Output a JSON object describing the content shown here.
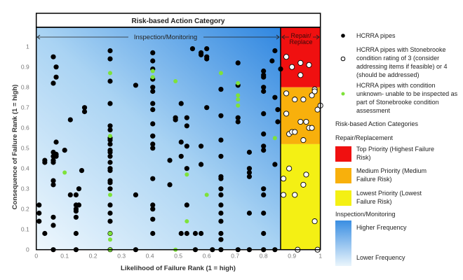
{
  "chart_data": {
    "type": "scatter",
    "title": "Risk-based Action Category",
    "xlabel": "Likelihood of Failure Rank (1 = high)",
    "ylabel": "Consequence of Failure Rank (1 = high)",
    "xlim": [
      0,
      1
    ],
    "ylim": [
      0,
      1.1
    ],
    "xticks": [
      "0",
      "0.1",
      "0.2",
      "0.3",
      "0.4",
      "0.5",
      "0.6",
      "0.7",
      "0.8",
      "0.9",
      "1"
    ],
    "yticks": [
      "0",
      "0.1",
      "0.2",
      "0.3",
      "0.4",
      "0.5",
      "0.6",
      "0.7",
      "0.8",
      "0.9",
      "1"
    ],
    "grid": false,
    "legend_position": "right",
    "zones": {
      "inspection_label": "Inspection/Monitoring",
      "repair_label_line1": "Repair/",
      "repair_label_line2": "Replace",
      "repair_x_start": 0.86,
      "top_priority_y_start": 0.8,
      "medium_priority_y_start": 0.52,
      "colors": {
        "top": "#f01010",
        "medium": "#f8b00c",
        "lowest": "#f4f014",
        "high_freq": "#3a8ee2",
        "low_freq": "#e6f3fb"
      }
    },
    "series": [
      {
        "name": "HCRRA pipes",
        "color": "#000000",
        "points": [
          [
            0.06,
            0.95
          ],
          [
            0.07,
            0.9
          ],
          [
            0.07,
            0.85
          ],
          [
            0.06,
            0.82
          ],
          [
            0.26,
            0.98
          ],
          [
            0.26,
            0.94
          ],
          [
            0.26,
            0.83
          ],
          [
            0.26,
            0.72
          ],
          [
            0.26,
            0.61
          ],
          [
            0.26,
            0.59
          ],
          [
            0.12,
            0.64
          ],
          [
            0.17,
            0.7
          ],
          [
            0.17,
            0.68
          ],
          [
            0.35,
            0.81
          ],
          [
            0.41,
            0.97
          ],
          [
            0.41,
            0.93
          ],
          [
            0.41,
            0.89
          ],
          [
            0.41,
            0.84
          ],
          [
            0.41,
            0.8
          ],
          [
            0.41,
            0.78
          ],
          [
            0.41,
            0.72
          ],
          [
            0.41,
            0.69
          ],
          [
            0.41,
            0.62
          ],
          [
            0.41,
            0.56
          ],
          [
            0.51,
            0.72
          ],
          [
            0.49,
            0.65
          ],
          [
            0.49,
            0.64
          ],
          [
            0.53,
            0.65
          ],
          [
            0.53,
            0.61
          ],
          [
            0.55,
            0.99
          ],
          [
            0.58,
            0.97
          ],
          [
            0.58,
            0.96
          ],
          [
            0.6,
            0.99
          ],
          [
            0.6,
            0.95
          ],
          [
            0.6,
            0.94
          ],
          [
            0.6,
            0.7
          ],
          [
            0.65,
            0.79
          ],
          [
            0.65,
            0.66
          ],
          [
            0.71,
            0.92
          ],
          [
            0.71,
            0.81
          ],
          [
            0.71,
            0.65
          ],
          [
            0.71,
            0.63
          ],
          [
            0.8,
            0.88
          ],
          [
            0.8,
            0.86
          ],
          [
            0.8,
            0.85
          ],
          [
            0.8,
            0.8
          ],
          [
            0.8,
            0.78
          ],
          [
            0.8,
            0.67
          ],
          [
            0.8,
            0.57
          ],
          [
            0.84,
            0.98
          ],
          [
            0.83,
            0.93
          ],
          [
            0.86,
            0.89
          ],
          [
            0.84,
            0.75
          ],
          [
            0.85,
            0.69
          ],
          [
            0.85,
            0.63
          ],
          [
            0.65,
            0.54
          ],
          [
            0.01,
            0.22
          ],
          [
            0.01,
            0.18
          ],
          [
            0.01,
            0.14
          ],
          [
            0.03,
            0.08
          ],
          [
            0.03,
            0.44
          ],
          [
            0.03,
            0.43
          ],
          [
            0.06,
            0
          ],
          [
            0.07,
            0.53
          ],
          [
            0.06,
            0.48
          ],
          [
            0.06,
            0.46
          ],
          [
            0.07,
            0.47
          ],
          [
            0.07,
            0.46
          ],
          [
            0.06,
            0.44
          ],
          [
            0.06,
            0.43
          ],
          [
            0.06,
            0.34
          ],
          [
            0.06,
            0.32
          ],
          [
            0.06,
            0.16
          ],
          [
            0.06,
            0.12
          ],
          [
            0.1,
            0.49
          ],
          [
            0.16,
            0.39
          ],
          [
            0.12,
            0.27
          ],
          [
            0.14,
            0.27
          ],
          [
            0.15,
            0.3
          ],
          [
            0.14,
            0.22
          ],
          [
            0.15,
            0.22
          ],
          [
            0.14,
            0.2
          ],
          [
            0.14,
            0.19
          ],
          [
            0.14,
            0.16
          ],
          [
            0.14,
            0.08
          ],
          [
            0.14,
            0
          ],
          [
            0.26,
            0.55
          ],
          [
            0.26,
            0.54
          ],
          [
            0.26,
            0.52
          ],
          [
            0.26,
            0.49
          ],
          [
            0.26,
            0.48
          ],
          [
            0.26,
            0.46
          ],
          [
            0.26,
            0.43
          ],
          [
            0.26,
            0.4
          ],
          [
            0.26,
            0.39
          ],
          [
            0.26,
            0.34
          ],
          [
            0.26,
            0.33
          ],
          [
            0.26,
            0.3
          ],
          [
            0.26,
            0.22
          ],
          [
            0.26,
            0.18
          ],
          [
            0.26,
            0.14
          ],
          [
            0.26,
            0.08
          ],
          [
            0.26,
            0
          ],
          [
            0.35,
            0.27
          ],
          [
            0.35,
            0
          ],
          [
            0.41,
            0.56
          ],
          [
            0.41,
            0.52
          ],
          [
            0.41,
            0.5
          ],
          [
            0.41,
            0.35
          ],
          [
            0.41,
            0.22
          ],
          [
            0.41,
            0.2
          ],
          [
            0.41,
            0.15
          ],
          [
            0.41,
            0.08
          ],
          [
            0.47,
            0.44
          ],
          [
            0.47,
            0.32
          ],
          [
            0.51,
            0.53
          ],
          [
            0.51,
            0.46
          ],
          [
            0.51,
            0.08
          ],
          [
            0.53,
            0.51
          ],
          [
            0.53,
            0.4
          ],
          [
            0.53,
            0.22
          ],
          [
            0.53,
            0.08
          ],
          [
            0.56,
            0.08
          ],
          [
            0.56,
            0
          ],
          [
            0.58,
            0.51
          ],
          [
            0.58,
            0.42
          ],
          [
            0.58,
            0.08
          ],
          [
            0.62,
            0
          ],
          [
            0.65,
            0.46
          ],
          [
            0.65,
            0.36
          ],
          [
            0.65,
            0.35
          ],
          [
            0.65,
            0.3
          ],
          [
            0.65,
            0.27
          ],
          [
            0.65,
            0.22
          ],
          [
            0.65,
            0.18
          ],
          [
            0.65,
            0.14
          ],
          [
            0.65,
            0.08
          ],
          [
            0.65,
            0.05
          ],
          [
            0.65,
            0
          ],
          [
            0.71,
            0
          ],
          [
            0.75,
            0.48
          ],
          [
            0.75,
            0.4
          ],
          [
            0.75,
            0.38
          ],
          [
            0.75,
            0.36
          ],
          [
            0.75,
            0.18
          ],
          [
            0.75,
            0
          ],
          [
            0.8,
            0.51
          ],
          [
            0.8,
            0.49
          ],
          [
            0.8,
            0.3
          ],
          [
            0.8,
            0.27
          ],
          [
            0.8,
            0.18
          ],
          [
            0.8,
            0.08
          ],
          [
            0.8,
            0
          ],
          [
            0.84,
            0.42
          ],
          [
            0.84,
            0
          ]
        ]
      },
      {
        "name": "HCRRA pipes with Stonebrooke condition rating of 3 (consider addressing items if feasible) or 4 (should be addressed)",
        "color": "#ffffff",
        "points": [
          [
            0.88,
            0.95
          ],
          [
            0.9,
            0.9
          ],
          [
            0.93,
            0.92
          ],
          [
            0.96,
            0.91
          ],
          [
            0.93,
            0.86
          ],
          [
            0.88,
            0.77
          ],
          [
            0.91,
            0.74
          ],
          [
            0.94,
            0.74
          ],
          [
            0.97,
            0.76
          ],
          [
            0.98,
            0.79
          ],
          [
            0.98,
            0.78
          ],
          [
            0.99,
            0.69
          ],
          [
            1.0,
            0.71
          ],
          [
            0.88,
            0.67
          ],
          [
            0.93,
            0.63
          ],
          [
            0.95,
            0.63
          ],
          [
            0.96,
            0.6
          ],
          [
            0.97,
            0.6
          ],
          [
            0.89,
            0.57
          ],
          [
            0.9,
            0.58
          ],
          [
            0.91,
            0.58
          ],
          [
            0.94,
            0.54
          ],
          [
            0.87,
            0.35
          ],
          [
            0.89,
            0.4
          ],
          [
            0.95,
            0.37
          ],
          [
            0.94,
            0.32
          ],
          [
            0.87,
            0.27
          ],
          [
            0.91,
            0.27
          ],
          [
            0.98,
            0.14
          ],
          [
            0.92,
            0
          ],
          [
            0.99,
            0
          ]
        ]
      },
      {
        "name": "HCRRA pipes with condition unknown- unable to be inspected as part of Stonebrooke condition assessment",
        "color": "#7ee23a",
        "points": [
          [
            0.26,
            0.87
          ],
          [
            0.41,
            0.88
          ],
          [
            0.41,
            0.85
          ],
          [
            0.49,
            0.83
          ],
          [
            0.65,
            0.87
          ],
          [
            0.71,
            0.82
          ],
          [
            0.71,
            0.76
          ],
          [
            0.71,
            0.74
          ],
          [
            0.71,
            0.71
          ],
          [
            0.26,
            0.56
          ],
          [
            0.84,
            0.55
          ],
          [
            0.1,
            0.38
          ],
          [
            0.26,
            0.27
          ],
          [
            0.26,
            0.08
          ],
          [
            0.26,
            0.05
          ],
          [
            0.26,
            0
          ],
          [
            0.49,
            0
          ],
          [
            0.53,
            0.37
          ],
          [
            0.53,
            0.14
          ],
          [
            0.6,
            0.27
          ]
        ]
      }
    ]
  },
  "legend": {
    "series_labels": [
      "HCRRA pipes",
      "HCRRA pipes with Stonebrooke condition rating of 3 (consider addressing items if feasible) or 4 (should be addressed)",
      "HCRRA pipes with condition unknown- unable to be inspected as part of Stonebrooke condition assessment"
    ],
    "categories_heading": "Risk-based Action Categories",
    "repair_heading": "Repair/Replacement",
    "top_priority": "Top Priority (Highest Failure Risk)",
    "medium_priority": "Medium Priority (Medium Failure Risk)",
    "lowest_priority": "Lowest Priority (Lowest Failure Risk)",
    "inspection_heading": "Inspection/Monitoring",
    "higher_frequency": "Higher Frequency",
    "lower_frequency": "Lower Frequency"
  }
}
